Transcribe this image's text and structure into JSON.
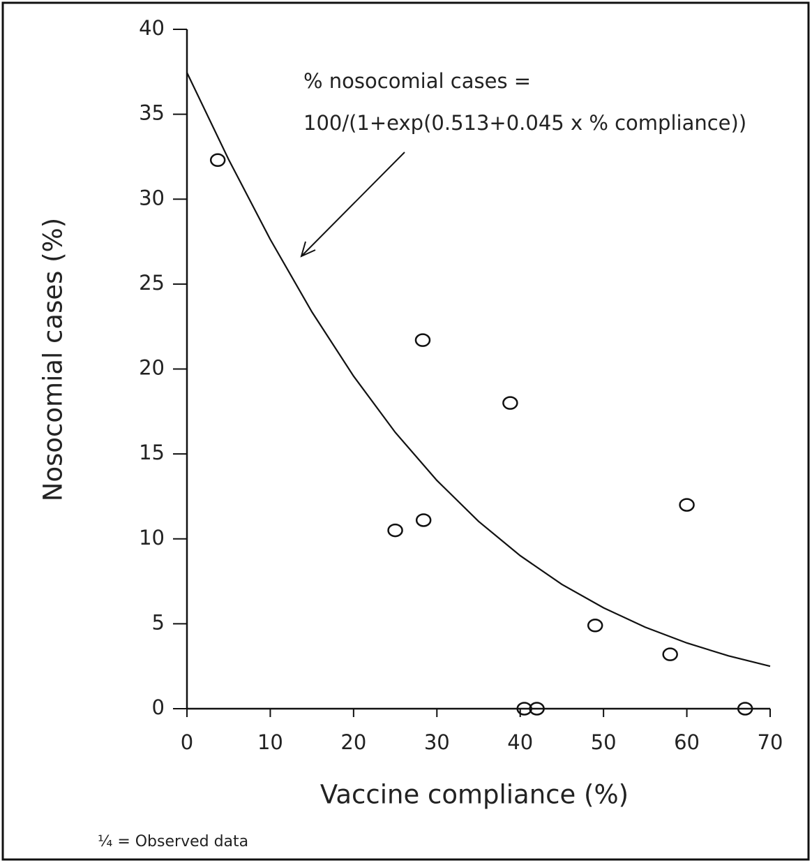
{
  "chart_data": {
    "type": "scatter",
    "xlabel": "Vaccine compliance (%)",
    "ylabel": "Nosocomial cases (%)",
    "annotations": [
      "% nosocomial cases =",
      "100/(1+exp(0.513+0.045 x % compliance))"
    ],
    "footnote": "¼ = Observed data",
    "xlim": [
      0,
      70
    ],
    "ylim": [
      0,
      40
    ],
    "xticks": [
      0,
      10,
      20,
      30,
      40,
      50,
      60,
      70
    ],
    "yticks": [
      0,
      5,
      10,
      15,
      20,
      25,
      30,
      35,
      40
    ],
    "series": [
      {
        "type": "scatter",
        "color": "#111111",
        "x": [
          3.7,
          28.3,
          38.8,
          25.0,
          28.4,
          60.0,
          49.0,
          58.0,
          40.5,
          42.0,
          67.0
        ],
        "values": [
          32.3,
          21.7,
          18.0,
          10.5,
          11.1,
          12.0,
          4.9,
          3.2,
          0,
          0,
          0
        ]
      },
      {
        "type": "line",
        "color": "#111111",
        "x": [
          0,
          5,
          10,
          15,
          20,
          25,
          30,
          35,
          40,
          45,
          50,
          55,
          60,
          65,
          70
        ],
        "values": [
          37.45,
          32.34,
          27.63,
          23.36,
          19.58,
          16.27,
          13.44,
          11.03,
          9.01,
          7.32,
          5.94,
          4.8,
          3.87,
          3.11,
          2.5
        ]
      }
    ]
  }
}
